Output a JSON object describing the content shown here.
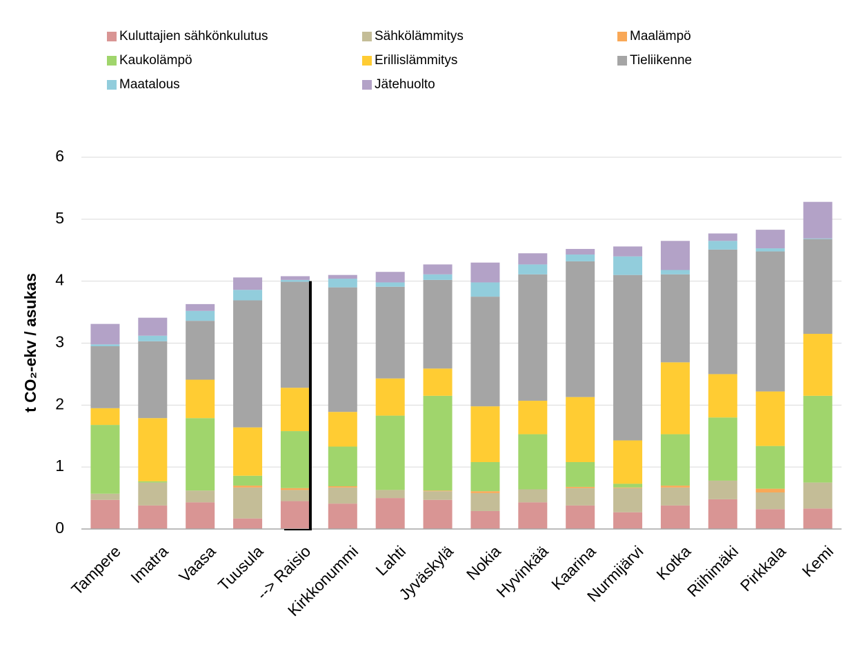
{
  "chart_data": {
    "type": "stacked_bar",
    "y_label": "t CO₂-ekv / asukas",
    "categories": [
      "Tampere",
      "Imatra",
      "Vaasa",
      "Tuusula",
      "--> Raisio",
      "Kirkkonummi",
      "Lahti",
      "Jyväskylä",
      "Nokia",
      "Hyvinkää",
      "Kaarina",
      "Nurmijärvi",
      "Kotka",
      "Riihimäki",
      "Pirkkala",
      "Kemi"
    ],
    "series": [
      {
        "name": "Kuluttajien sähkönkulutus",
        "color": "#d99594",
        "values": [
          0.47,
          0.38,
          0.43,
          0.17,
          0.45,
          0.41,
          0.5,
          0.47,
          0.29,
          0.43,
          0.38,
          0.27,
          0.38,
          0.48,
          0.32,
          0.33
        ]
      },
      {
        "name": "Sähkölämmitys",
        "color": "#c4bd97",
        "values": [
          0.1,
          0.37,
          0.19,
          0.5,
          0.18,
          0.26,
          0.13,
          0.14,
          0.29,
          0.21,
          0.28,
          0.39,
          0.29,
          0.3,
          0.27,
          0.42
        ]
      },
      {
        "name": "Maalämpö",
        "color": "#f9a857",
        "values": [
          0,
          0,
          0,
          0.03,
          0.03,
          0.02,
          0,
          0.01,
          0.03,
          0,
          0.02,
          0.01,
          0.03,
          0,
          0.06,
          0
        ]
      },
      {
        "name": "Kaukolämpö",
        "color": "#a0d56c",
        "values": [
          1.11,
          0.02,
          1.17,
          0.16,
          0.92,
          0.64,
          1.2,
          1.53,
          0.47,
          0.89,
          0.4,
          0.06,
          0.83,
          1.02,
          0.69,
          1.4
        ]
      },
      {
        "name": "Erillislämmitys",
        "color": "#ffcc33",
        "values": [
          0.27,
          1.02,
          0.62,
          0.78,
          0.7,
          0.56,
          0.6,
          0.44,
          0.9,
          0.54,
          1.05,
          0.7,
          1.16,
          0.7,
          0.88,
          1.0
        ]
      },
      {
        "name": "Tieliikenne",
        "color": "#a5a5a5",
        "values": [
          1.0,
          1.24,
          0.95,
          2.05,
          1.71,
          2.01,
          1.48,
          1.43,
          1.77,
          2.04,
          2.19,
          2.67,
          1.42,
          2.01,
          2.26,
          1.53
        ]
      },
      {
        "name": "Maatalous",
        "color": "#92cddc",
        "values": [
          0.03,
          0.09,
          0.16,
          0.17,
          0.03,
          0.14,
          0.07,
          0.09,
          0.23,
          0.16,
          0.11,
          0.3,
          0.07,
          0.14,
          0.05,
          0.01
        ]
      },
      {
        "name": "Jätehuolto",
        "color": "#b3a2c7",
        "values": [
          0.33,
          0.29,
          0.11,
          0.2,
          0.06,
          0.06,
          0.17,
          0.16,
          0.32,
          0.18,
          0.09,
          0.16,
          0.47,
          0.12,
          0.3,
          0.59
        ]
      }
    ],
    "ylim": [
      0,
      6
    ],
    "yticks": [
      0,
      1,
      2,
      3,
      4,
      5,
      6
    ],
    "grid": true,
    "legend": "top"
  }
}
